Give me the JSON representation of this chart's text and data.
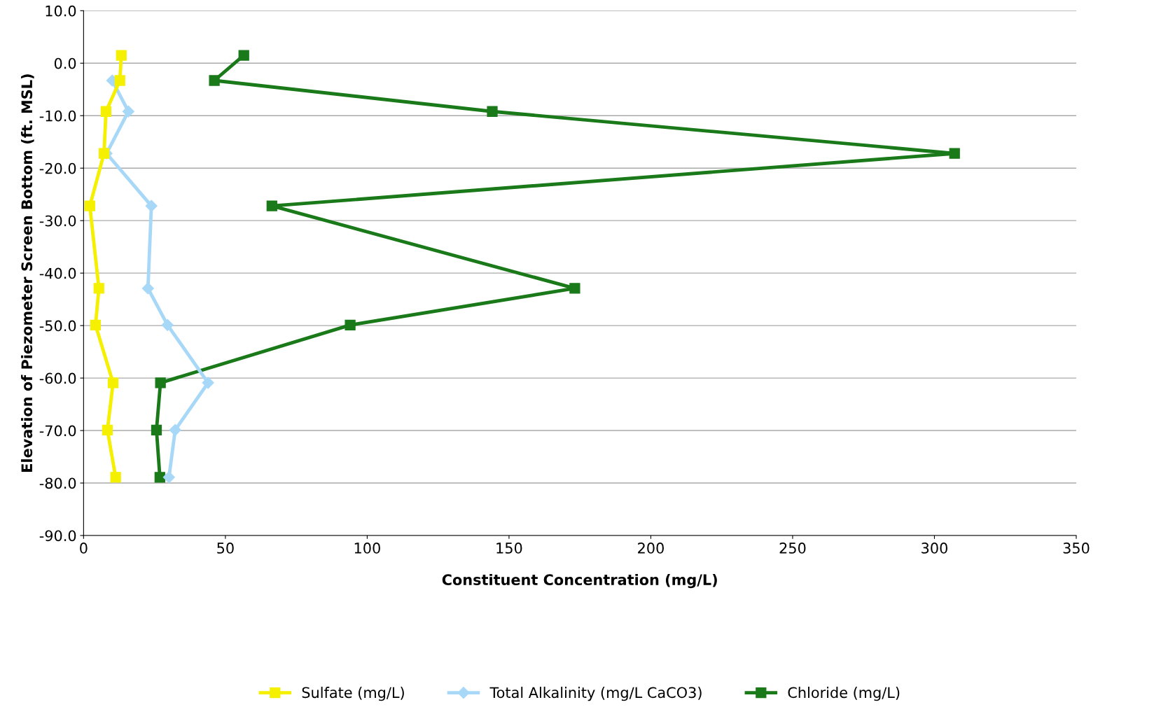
{
  "chart_data": {
    "type": "line",
    "xlabel": "Constituent Concentration (mg/L)",
    "ylabel": "Elevation of Piezometer Screen Bottom (ft. MSL)",
    "xlim": [
      0,
      350
    ],
    "xticks": [
      0,
      50,
      100,
      150,
      200,
      250,
      300,
      350
    ],
    "ylim": [
      -90,
      10
    ],
    "yticks": [
      {
        "value": 10,
        "label": "10.0"
      },
      {
        "value": 0,
        "label": "0.0"
      },
      {
        "value": -10,
        "label": "-10.0"
      },
      {
        "value": -20,
        "label": "-20.0"
      },
      {
        "value": -30,
        "label": "-30.0"
      },
      {
        "value": -40,
        "label": "-40.0"
      },
      {
        "value": -50,
        "label": "-50.0"
      },
      {
        "value": -60,
        "label": "-60.0"
      },
      {
        "value": -70,
        "label": "-70.0"
      },
      {
        "value": -80,
        "label": "-80.0"
      },
      {
        "value": -90,
        "label": "-90.0"
      }
    ],
    "grid": "y",
    "legend": "bottom",
    "series": [
      {
        "name": "Sulfate (mg/L)",
        "color": "#f5f000",
        "marker": "square",
        "x": [
          13.3,
          12.8,
          7.9,
          7.2,
          2.2,
          5.4,
          4.2,
          10.4,
          8.4,
          11.3
        ],
        "values": [
          1.5,
          -3.3,
          -9.2,
          -17.2,
          -27.2,
          -42.9,
          -49.9,
          -60.9,
          -69.9,
          -78.9
        ]
      },
      {
        "name": "Total Alkalinity (mg/L CaCO3)",
        "color": "#a8d8f8",
        "marker": "diamond",
        "x": [
          10.1,
          15.8,
          8.1,
          23.9,
          22.7,
          29.6,
          43.9,
          32.3,
          30.1
        ],
        "values": [
          -3.3,
          -9.2,
          -17.2,
          -27.2,
          -42.9,
          -49.9,
          -60.9,
          -69.9,
          -78.9
        ]
      },
      {
        "name": "Chloride (mg/L)",
        "color": "#1a7a1a",
        "marker": "square",
        "x": [
          56.5,
          46.1,
          144.1,
          307.1,
          66.4,
          173.2,
          94.0,
          27.1,
          25.7,
          26.9
        ],
        "values": [
          1.5,
          -3.3,
          -9.2,
          -17.2,
          -27.2,
          -42.9,
          -49.9,
          -60.9,
          -69.9,
          -78.9
        ]
      }
    ]
  }
}
